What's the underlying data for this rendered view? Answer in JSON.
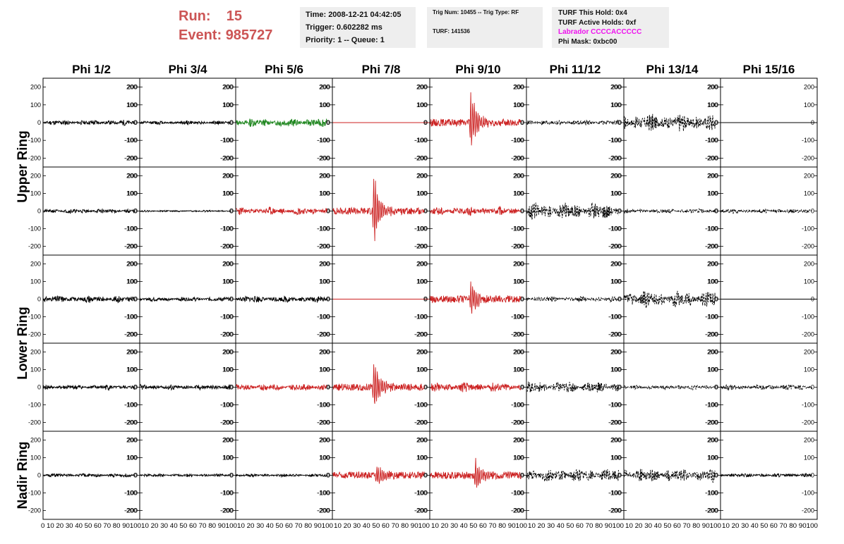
{
  "header": {
    "run_label": "Run:",
    "run_value": "15",
    "event_label": "Event:",
    "event_value": "985727",
    "color": "#cc5555"
  },
  "info1": {
    "time": "Time: 2008-12-21 04:42:05",
    "trigger": "Trigger: 0.602282 ms",
    "priority": "Priority: 1 -- Queue: 1"
  },
  "info2": {
    "trig": "Trig Num: 10455 -- Trig Type: RF",
    "turf": "TURF: 141536"
  },
  "info3": {
    "hold": "TURF This Hold: 0x4",
    "active": "TURF Active Holds: 0xf",
    "labrador": "Labrador CCCCACCCCC",
    "phimask": "Phi Mask: 0xbc00",
    "labrador_color": "#ee11ee"
  },
  "chart_data": {
    "type": "line",
    "columns": [
      "Phi 1/2",
      "Phi 3/4",
      "Phi 5/6",
      "Phi 7/8",
      "Phi 9/10",
      "Phi 11/12",
      "Phi 13/14",
      "Phi 15/16"
    ],
    "rows": [
      "Upper Ring",
      "Lower Ring",
      "Nadir Ring"
    ],
    "y_ticks": [
      "200",
      "100",
      "0",
      "-100",
      "-200"
    ],
    "y_tick_values": [
      200,
      100,
      0,
      -100,
      -200
    ],
    "x_tick_values": [
      0,
      10,
      20,
      30,
      40,
      50,
      60,
      70,
      80,
      90,
      100
    ],
    "x_axis_text_first": "0 10 20 30 40 50 60 70 80 90100",
    "x_axis_text": "10 20 30 40 50 60 70 80 90100",
    "ylim": [
      -250,
      250
    ],
    "xlim": [
      0,
      100
    ],
    "series_colors": {
      "k": "#000000",
      "r": "#cc2222",
      "g": "#228822"
    },
    "panels": [
      [
        {
          "color": "k",
          "style": "n",
          "amp": 14,
          "seed": 11
        },
        {
          "color": "k",
          "style": "n",
          "amp": 10,
          "seed": 12
        },
        {
          "color": "g",
          "style": "n",
          "amp": 22,
          "seed": 13
        },
        {
          "color": "r",
          "style": "flat",
          "amp": 0,
          "seed": 14
        },
        {
          "color": "r",
          "style": "pulse",
          "amp": 200,
          "center": 42,
          "seed": 15
        },
        {
          "color": "k",
          "style": "d",
          "amp": 14,
          "seed": 16
        },
        {
          "color": "k",
          "style": "d",
          "amp": 45,
          "seed": 17
        },
        {
          "color": "k",
          "style": "flat",
          "amp": 0,
          "seed": 18
        }
      ],
      [
        {
          "color": "k",
          "style": "n",
          "amp": 12,
          "seed": 21
        },
        {
          "color": "k",
          "style": "n",
          "amp": 5,
          "seed": 22
        },
        {
          "color": "r",
          "style": "n",
          "amp": 20,
          "seed": 23
        },
        {
          "color": "r",
          "style": "pulse",
          "amp": 240,
          "center": 42,
          "seed": 24
        },
        {
          "color": "r",
          "style": "n",
          "amp": 22,
          "seed": 25
        },
        {
          "color": "k",
          "style": "d",
          "amp": 45,
          "seed": 26
        },
        {
          "color": "k",
          "style": "d",
          "amp": 12,
          "seed": 27
        },
        {
          "color": "k",
          "style": "d",
          "amp": 12,
          "seed": 28
        }
      ],
      [
        {
          "color": "k",
          "style": "n",
          "amp": 18,
          "seed": 31
        },
        {
          "color": "k",
          "style": "n",
          "amp": 12,
          "seed": 32
        },
        {
          "color": "k",
          "style": "n",
          "amp": 18,
          "seed": 33
        },
        {
          "color": "r",
          "style": "flat",
          "amp": 0,
          "seed": 34
        },
        {
          "color": "r",
          "style": "pulse",
          "amp": 110,
          "center": 42,
          "seed": 35
        },
        {
          "color": "k",
          "style": "d",
          "amp": 14,
          "seed": 36
        },
        {
          "color": "k",
          "style": "d",
          "amp": 45,
          "seed": 37
        },
        {
          "color": "k",
          "style": "flat",
          "amp": 0,
          "seed": 38
        }
      ],
      [
        {
          "color": "k",
          "style": "n",
          "amp": 14,
          "seed": 41
        },
        {
          "color": "k",
          "style": "n",
          "amp": 14,
          "seed": 42
        },
        {
          "color": "r",
          "style": "n",
          "amp": 18,
          "seed": 43
        },
        {
          "color": "r",
          "style": "pulse",
          "amp": 170,
          "center": 42,
          "seed": 44
        },
        {
          "color": "r",
          "style": "n",
          "amp": 25,
          "seed": 45
        },
        {
          "color": "k",
          "style": "d",
          "amp": 30,
          "seed": 46
        },
        {
          "color": "k",
          "style": "d",
          "amp": 12,
          "seed": 47
        },
        {
          "color": "k",
          "style": "d",
          "amp": 16,
          "seed": 48
        }
      ],
      [
        {
          "color": "k",
          "style": "n",
          "amp": 10,
          "seed": 51
        },
        {
          "color": "k",
          "style": "n",
          "amp": 8,
          "seed": 52
        },
        {
          "color": "k",
          "style": "n",
          "amp": 8,
          "seed": 53
        },
        {
          "color": "r",
          "style": "pulse",
          "amp": 60,
          "center": 45,
          "seed": 54
        },
        {
          "color": "r",
          "style": "pulse",
          "amp": 90,
          "center": 47,
          "seed": 55
        },
        {
          "color": "k",
          "style": "d",
          "amp": 35,
          "seed": 56
        },
        {
          "color": "k",
          "style": "d",
          "amp": 35,
          "seed": 57
        },
        {
          "color": "k",
          "style": "n",
          "amp": 10,
          "seed": 58
        }
      ]
    ]
  }
}
